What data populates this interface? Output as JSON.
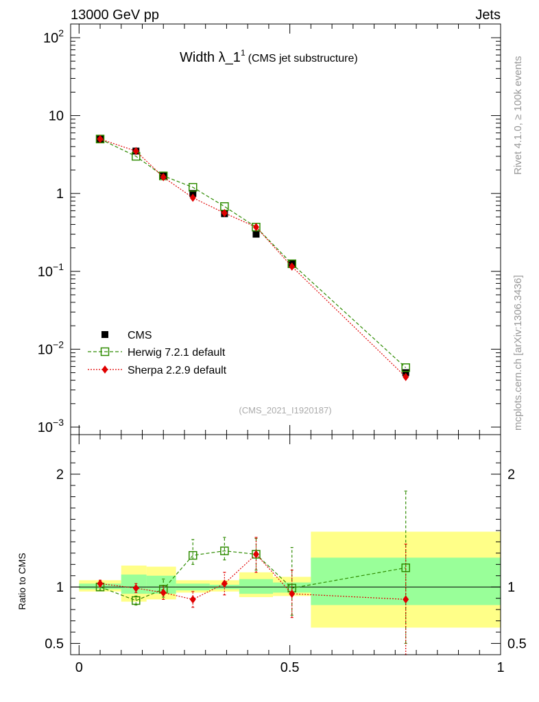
{
  "header": {
    "left": "13000 GeV pp",
    "right": "Jets"
  },
  "side_labels": {
    "rivet": "Rivet 4.1.0, ≥ 100k events",
    "mcplots": "mcplots.cern.ch [arXiv:1306.3436]"
  },
  "title": {
    "main": "Width λ_1",
    "sup": "1",
    "sub": "(CMS jet substructure)"
  },
  "watermark": "(CMS_2021_I1920187)",
  "ratio_ylabel": "Ratio to CMS",
  "colors": {
    "data": "#000000",
    "herwig": "#2e8b00",
    "sherpa": "#e00000",
    "band_outer": "#ffff88",
    "band_inner": "#99ff99"
  },
  "chart_data": {
    "type": "scatter",
    "top": {
      "yscale": "log",
      "ylim": [
        0.0008,
        150
      ],
      "y_ticks": [
        {
          "v": 100,
          "base": "10",
          "exp": "2"
        },
        {
          "v": 10,
          "base": "10",
          "exp": ""
        },
        {
          "v": 1,
          "base": "1",
          "exp": ""
        },
        {
          "v": 0.1,
          "base": "10",
          "exp": "−1"
        },
        {
          "v": 0.01,
          "base": "10",
          "exp": "−2"
        },
        {
          "v": 0.001,
          "base": "10",
          "exp": "−3"
        }
      ]
    },
    "xlim": [
      -0.02,
      1.0
    ],
    "x_ticks": [
      {
        "v": 0,
        "label": "0"
      },
      {
        "v": 0.5,
        "label": "0.5"
      },
      {
        "v": 1,
        "label": "1"
      }
    ],
    "ratio": {
      "ylim": [
        0.4,
        2.35
      ],
      "y_ticks": [
        {
          "v": 0.5,
          "label": "0.5"
        },
        {
          "v": 1,
          "label": "1"
        },
        {
          "v": 2,
          "label": "2"
        }
      ]
    },
    "bins": [
      [
        0.0,
        0.1
      ],
      [
        0.1,
        0.16
      ],
      [
        0.16,
        0.23
      ],
      [
        0.23,
        0.31
      ],
      [
        0.31,
        0.38
      ],
      [
        0.38,
        0.46
      ],
      [
        0.46,
        0.55
      ],
      [
        0.55,
        1.0
      ]
    ],
    "legend": {
      "position": "bottom-left"
    },
    "series": [
      {
        "name": "CMS",
        "marker": "square-filled",
        "x": [
          0.05,
          0.135,
          0.2,
          0.27,
          0.345,
          0.42,
          0.505,
          0.775
        ],
        "y": [
          5.0,
          3.5,
          1.7,
          1.0,
          0.55,
          0.3,
          0.125,
          0.005
        ],
        "band_inner": [
          [
            0.98,
            1.03
          ],
          [
            0.94,
            1.11
          ],
          [
            0.94,
            1.1
          ],
          [
            0.97,
            1.03
          ],
          [
            0.98,
            1.02
          ],
          [
            0.94,
            1.07
          ],
          [
            0.95,
            1.04
          ],
          [
            0.84,
            1.26
          ]
        ],
        "band_outer": [
          [
            0.96,
            1.06
          ],
          [
            0.87,
            1.19
          ],
          [
            0.89,
            1.18
          ],
          [
            0.95,
            1.06
          ],
          [
            0.96,
            1.06
          ],
          [
            0.91,
            1.13
          ],
          [
            0.92,
            1.09
          ],
          [
            0.64,
            1.49
          ]
        ]
      },
      {
        "name": "Herwig 7.2.1 default",
        "marker": "square-open",
        "style": "dashed",
        "x": [
          0.05,
          0.135,
          0.2,
          0.27,
          0.345,
          0.42,
          0.505,
          0.775
        ],
        "y": [
          5.0,
          3.0,
          1.68,
          1.2,
          0.68,
          0.37,
          0.125,
          0.0058
        ],
        "ratio": [
          1.0,
          0.88,
          0.98,
          1.28,
          1.32,
          1.29,
          0.99,
          1.17
        ],
        "ratio_err": [
          [
            0.97,
            1.03
          ],
          [
            0.84,
            0.92
          ],
          [
            0.91,
            1.07
          ],
          [
            1.2,
            1.42
          ],
          [
            1.24,
            1.44
          ],
          [
            1.15,
            1.43
          ],
          [
            0.75,
            1.35
          ],
          [
            0.5,
            1.85
          ]
        ]
      },
      {
        "name": "Sherpa 2.2.9 default",
        "marker": "diamond-filled",
        "style": "dotted",
        "x": [
          0.05,
          0.135,
          0.2,
          0.27,
          0.345,
          0.42,
          0.505,
          0.775
        ],
        "y": [
          5.0,
          3.5,
          1.62,
          0.88,
          0.56,
          0.37,
          0.115,
          0.0044
        ],
        "ratio": [
          1.03,
          0.99,
          0.95,
          0.89,
          1.03,
          1.29,
          0.94,
          0.89
        ],
        "ratio_err": [
          [
            1.0,
            1.06
          ],
          [
            0.95,
            1.03
          ],
          [
            0.89,
            1.01
          ],
          [
            0.82,
            0.96
          ],
          [
            0.93,
            1.13
          ],
          [
            1.13,
            1.44
          ],
          [
            0.73,
            1.15
          ],
          [
            0.4,
            1.38
          ]
        ]
      }
    ]
  }
}
